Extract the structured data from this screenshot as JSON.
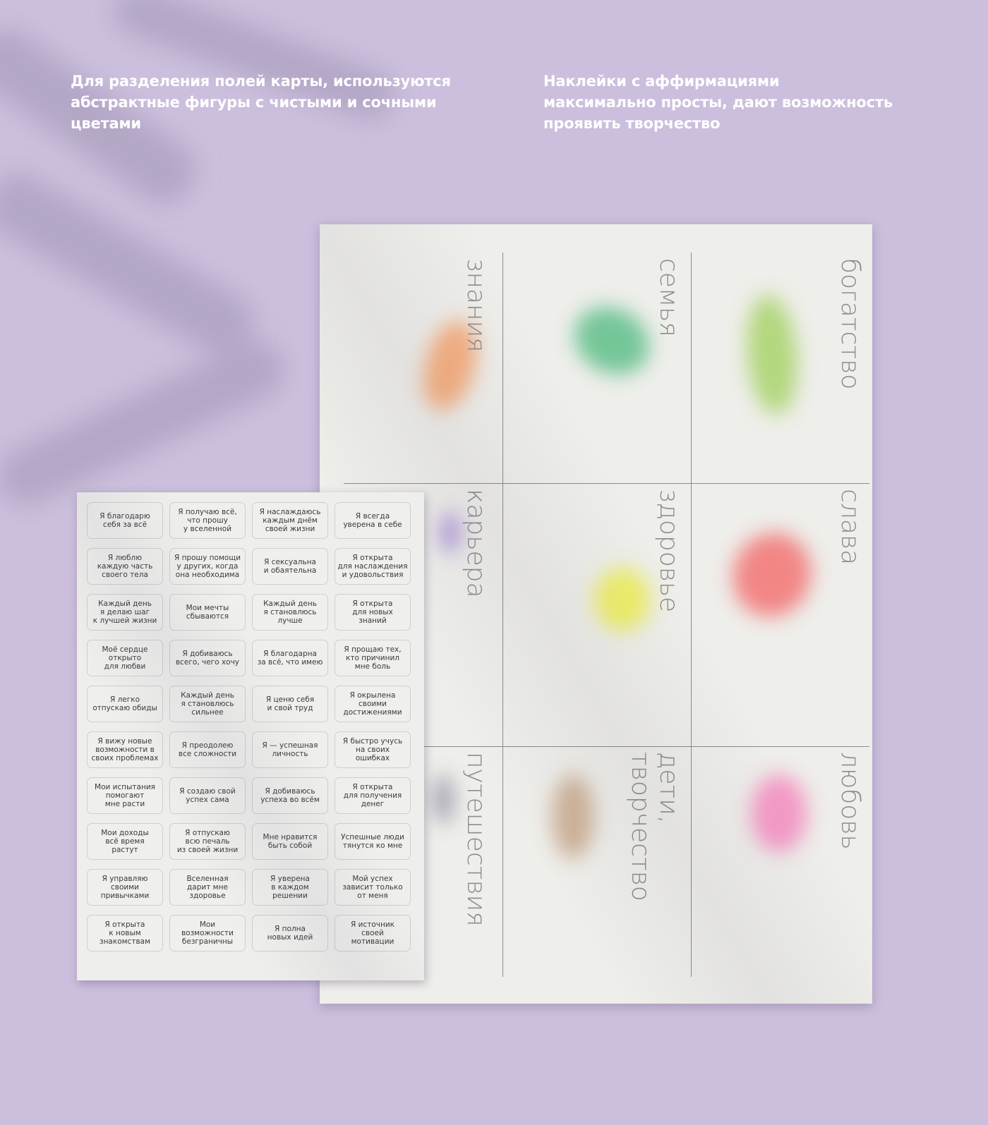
{
  "captions": {
    "left": "Для разделения полей карты, используются абстрактные фигуры с чистыми и сочными цветами",
    "right": "Наклейки с аффирмациями максимально просты, дают возможность проявить творчество"
  },
  "poster": {
    "cells": [
      {
        "label": "знания",
        "color": "#f6a56f"
      },
      {
        "label": "семья",
        "color": "#5fbf8a"
      },
      {
        "label": "богатство",
        "color": "#a9d36b"
      },
      {
        "label": "карьера",
        "color": "#a98fd6"
      },
      {
        "label": "здоровье",
        "color": "#eeee55"
      },
      {
        "label": "слава",
        "color": "#f27474"
      },
      {
        "label": "путешествия",
        "color": "#9a98a8"
      },
      {
        "label": "дети,\nтворчество",
        "color": "#c8a98c"
      },
      {
        "label": "любовь",
        "color": "#f58cc0"
      }
    ]
  },
  "stickers": [
    "Я благодарю\nсебя за всё",
    "Я получаю всё,\nчто прошу\nу вселенной",
    "Я наслаждаюсь\nкаждым днём\nсвоей жизни",
    "Я всегда\nуверена в себе",
    "Я люблю\nкаждую часть\nсвоего тела",
    "Я прошу помощи\nу других, когда\nона необходима",
    "Я сексуальна\nи обаятельна",
    "Я открыта\nдля наслаждения\nи удовольствия",
    "Каждый день\nя делаю шаг\nк лучшей жизни",
    "Мои мечты\nсбываются",
    "Каждый день\nя становлюсь\nлучше",
    "Я открыта\nдля новых\nзнаний",
    "Моё сердце\nоткрыто\nдля любви",
    "Я добиваюсь\nвсего, чего хочу",
    "Я благодарна\nза всё, что имею",
    "Я прощаю тех,\nкто причинил\nмне боль",
    "Я легко\nотпускаю обиды",
    "Каждый день\nя становлюсь\nсильнее",
    "Я ценю себя\nи свой труд",
    "Я окрылена\nсвоими\nдостижениями",
    "Я вижу новые\nвозможности в\nсвоих проблемах",
    "Я преодолею\nвсе сложности",
    "Я — успешная\nличность",
    "Я быстро учусь\nна своих\nошибках",
    "Мои испытания\nпомогают\nмне расти",
    "Я создаю свой\nуспех сама",
    "Я добиваюсь\nуспеха во всём",
    "Я открыта\nдля получения\nденег",
    "Мои доходы\nвсё время\nрастут",
    "Я отпускаю\nвсю печаль\nиз своей жизни",
    "Мне нравится\nбыть собой",
    "Успешные люди\nтянутся ко мне",
    "Я управляю\nсвоими\nпривычками",
    "Вселенная\nдарит мне\nздоровье",
    "Я уверена\nв каждом\nрешении",
    "Мой успех\nзависит только\nот меня",
    "Я открыта\nк новым\nзнакомствам",
    "Мои\nвозможности\nбезграничны",
    "Я полна\nновых идей",
    "Я источник\nсвоей\nмотивации"
  ]
}
